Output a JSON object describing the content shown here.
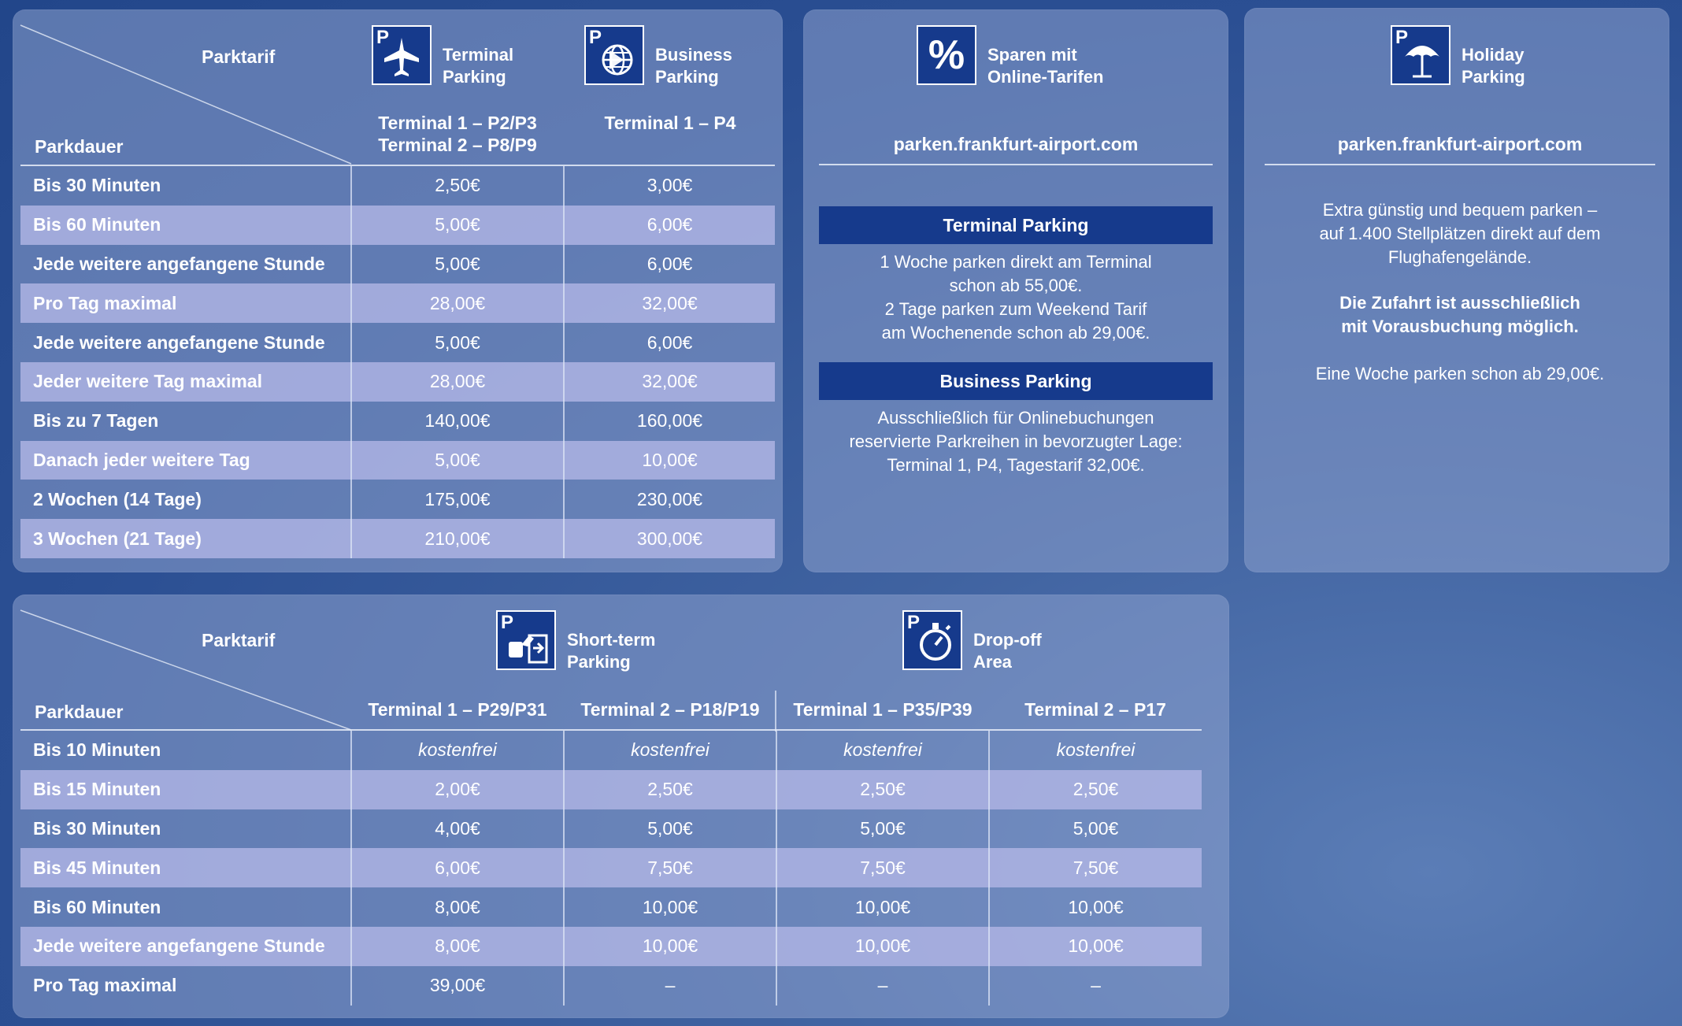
{
  "top_table": {
    "corner_top": "Parktarif",
    "corner_bottom": "Parkdauer",
    "headers": [
      {
        "title_line1": "Terminal",
        "title_line2": "Parking",
        "icon": "airplane-icon",
        "sub_line1": "Terminal 1 – P2/P3",
        "sub_line2": "Terminal 2 – P8/P9"
      },
      {
        "title_line1": "Business",
        "title_line2": "Parking",
        "icon": "globe-icon",
        "sub_line1": "Terminal 1 – P4",
        "sub_line2": ""
      }
    ],
    "rows": [
      {
        "label": "Bis 30 Minuten",
        "values": [
          "2,50€",
          "3,00€"
        ]
      },
      {
        "label": "Bis 60 Minuten",
        "values": [
          "5,00€",
          "6,00€"
        ]
      },
      {
        "label": "Jede weitere angefangene Stunde",
        "values": [
          "5,00€",
          "6,00€"
        ]
      },
      {
        "label": "Pro Tag maximal",
        "values": [
          "28,00€",
          "32,00€"
        ]
      },
      {
        "label": "Jede weitere angefangene Stunde",
        "values": [
          "5,00€",
          "6,00€"
        ]
      },
      {
        "label": "Jeder weitere Tag maximal",
        "values": [
          "28,00€",
          "32,00€"
        ]
      },
      {
        "label": "Bis zu 7 Tagen",
        "values": [
          "140,00€",
          "160,00€"
        ]
      },
      {
        "label": "Danach jeder weitere Tag",
        "values": [
          "5,00€",
          "10,00€"
        ]
      },
      {
        "label": "2 Wochen (14 Tage)",
        "values": [
          "175,00€",
          "230,00€"
        ]
      },
      {
        "label": "3 Wochen (21 Tage)",
        "values": [
          "210,00€",
          "300,00€"
        ]
      }
    ]
  },
  "online_panel": {
    "icon": "percent-icon",
    "icon_glyph": "%",
    "title_line1": "Sparen mit",
    "title_line2": "Online-Tarifen",
    "url": "parken.frankfurt-airport.com",
    "terminal_bar": "Terminal Parking",
    "terminal_text": [
      "1 Woche parken direkt am Terminal",
      "schon ab 55,00€.",
      "2 Tage parken zum Weekend Tarif",
      "am Wochenende schon ab 29,00€."
    ],
    "business_bar": "Business Parking",
    "business_text": [
      "Ausschließlich für Onlinebuchungen",
      "reservierte Parkreihen in bevorzugter Lage:",
      "Terminal 1, P4, Tagestarif 32,00€."
    ]
  },
  "holiday_panel": {
    "icon": "umbrella-icon",
    "title_line1": "Holiday",
    "title_line2": "Parking",
    "url": "parken.frankfurt-airport.com",
    "text1": [
      "Extra günstig und bequem parken –",
      "auf 1.400 Stellplätzen direkt auf dem",
      "Flughafengelände."
    ],
    "text2": [
      "Die Zufahrt ist ausschließlich",
      "mit Vorausbuchung möglich."
    ],
    "text3": "Eine Woche parken schon ab 29,00€."
  },
  "bottom_table": {
    "corner_top": "Parktarif",
    "corner_bottom": "Parkdauer",
    "groups": [
      {
        "title_line1": "Short-term",
        "title_line2": "Parking",
        "icon": "short-term-parking-icon"
      },
      {
        "title_line1": "Drop-off",
        "title_line2": "Area",
        "icon": "stopwatch-icon"
      }
    ],
    "columns": [
      "Terminal 1 – P29/P31",
      "Terminal 2 – P18/P19",
      "Terminal 1 – P35/P39",
      "Terminal 2 – P17"
    ],
    "rows": [
      {
        "label": "Bis 10 Minuten",
        "values": [
          "kostenfrei",
          "kostenfrei",
          "kostenfrei",
          "kostenfrei"
        ]
      },
      {
        "label": "Bis 15 Minuten",
        "values": [
          "2,00€",
          "2,50€",
          "2,50€",
          "2,50€"
        ]
      },
      {
        "label": "Bis 30 Minuten",
        "values": [
          "4,00€",
          "5,00€",
          "5,00€",
          "5,00€"
        ]
      },
      {
        "label": "Bis 45 Minuten",
        "values": [
          "6,00€",
          "7,50€",
          "7,50€",
          "7,50€"
        ]
      },
      {
        "label": "Bis 60 Minuten",
        "values": [
          "8,00€",
          "10,00€",
          "10,00€",
          "10,00€"
        ]
      },
      {
        "label": "Jede weitere angefangene Stunde",
        "values": [
          "8,00€",
          "10,00€",
          "10,00€",
          "10,00€"
        ]
      },
      {
        "label": "Pro Tag maximal",
        "values": [
          "39,00€",
          "–",
          "–",
          "–"
        ]
      }
    ]
  },
  "p_letter": "P",
  "colors": {
    "panel": "#8ca0cd",
    "alt_row": "#b0b4e4",
    "bar": "#163a8c",
    "icon_bg": "#163a8c",
    "text": "#ffffff"
  }
}
